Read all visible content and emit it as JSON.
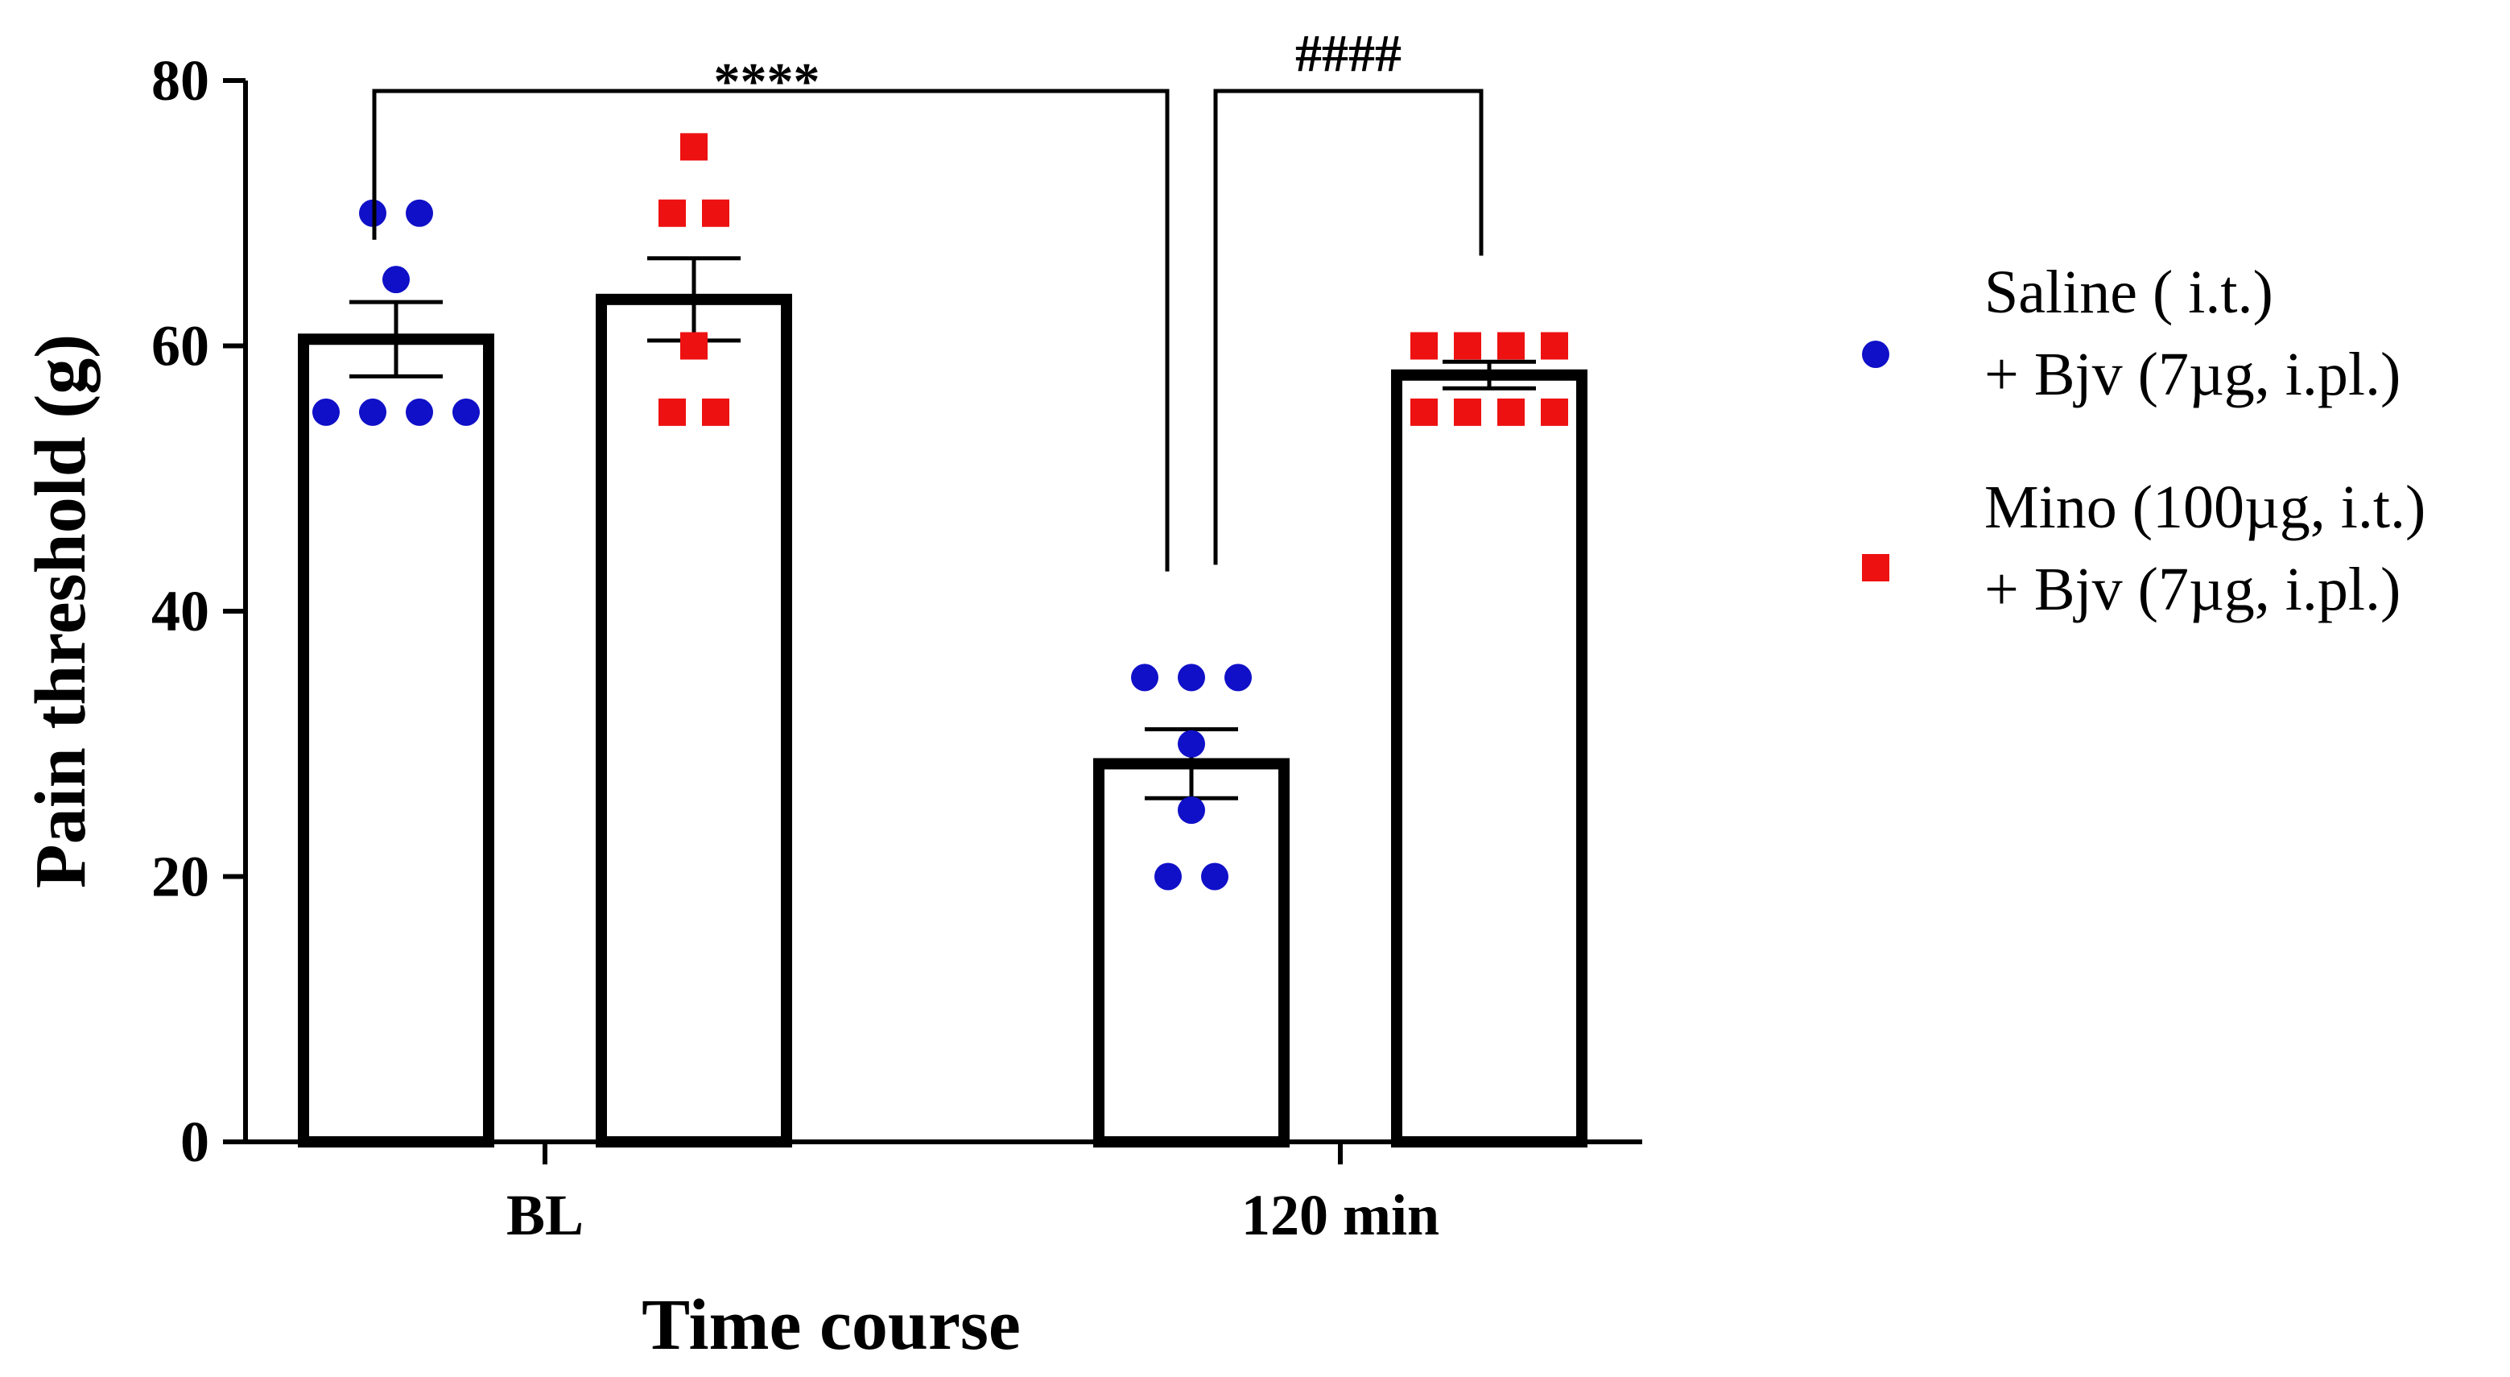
{
  "chart_data": {
    "type": "bar",
    "xlabel": "Time course",
    "ylabel": "Pain threshold (g)",
    "ylim": [
      0,
      80
    ],
    "yticks": [
      "0",
      "20",
      "40",
      "60",
      "80"
    ],
    "categories": [
      "BL",
      "120 min"
    ],
    "series": [
      {
        "name": "Saline ( i.t.) + Bjv (7µg, i.pl.)",
        "legend_lines": [
          "Saline ( i.t.)",
          "+ Bjv (7µg, i.pl.)"
        ],
        "color": "#1010c8",
        "marker": "circle",
        "values": [
          60.5,
          28.5
        ],
        "sem": [
          2.8,
          2.6
        ],
        "points": [
          [
            55,
            55,
            55,
            55,
            65,
            70,
            70
          ],
          [
            20,
            20,
            25,
            30,
            35,
            35,
            35
          ]
        ]
      },
      {
        "name": "Mino (100µg,  i.t.) + Bjv (7µg, i.pl.)",
        "legend_lines": [
          "Mino (100µg,  i.t.)",
          "+ Bjv (7µg, i.pl.)"
        ],
        "color": "#ee1111",
        "marker": "square",
        "values": [
          63.5,
          57.8
        ],
        "sem": [
          3.1,
          1.0
        ],
        "points": [
          [
            55,
            55,
            60,
            70,
            70,
            75
          ],
          [
            55,
            55,
            55,
            55,
            60,
            60,
            60,
            60
          ]
        ]
      }
    ],
    "significance": [
      {
        "label": "****",
        "from": "BL",
        "to": "120 min"
      },
      {
        "label": "####",
        "from": "120 min Saline",
        "to": "120 min Mino"
      }
    ],
    "legend_position": "right",
    "grid": false
  }
}
